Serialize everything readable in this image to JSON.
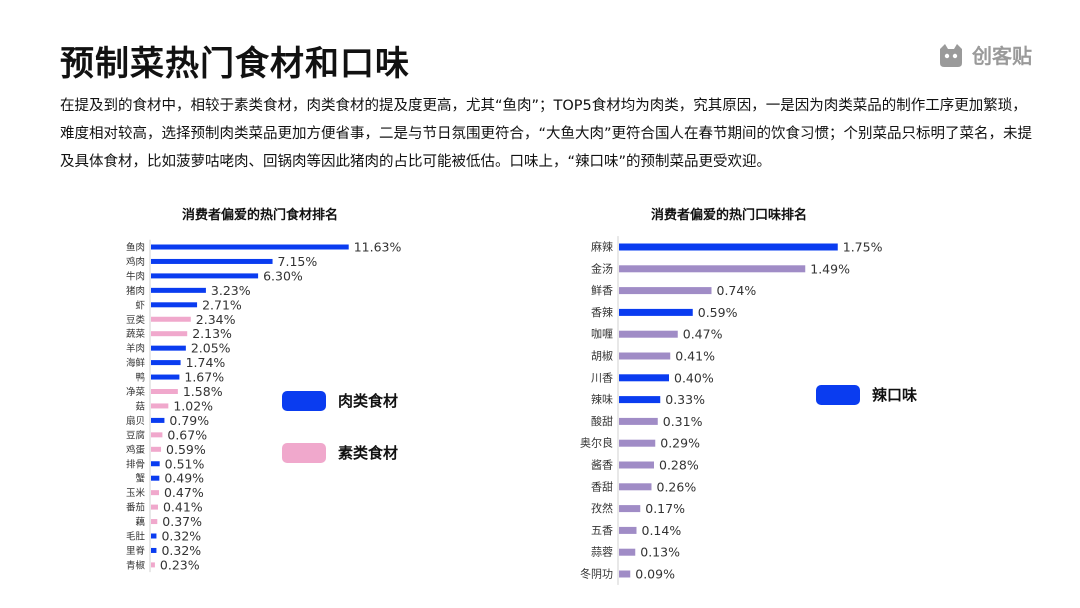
{
  "page": {
    "title": "预制菜热门食材和口味",
    "logo_text": "创客贴",
    "intro": "在提及到的食材中，相较于素类食材，肉类食材的提及度更高，尤其“鱼肉”；TOP5食材均为肉类，究其原因，一是因为肉类菜品的制作工序更加繁琐，难度相对较高，选择预制肉类菜品更加方便省事，二是与节日氛围更符合，“大鱼大肉”更符合国人在春节期间的饮食习惯；个别菜品只标明了菜名，未提及具体食材，比如菠萝咕咾肉、回锅肉等因此猪肉的占比可能被低估。口味上，“辣口味”的预制菜品更受欢迎。"
  },
  "colors": {
    "meat": "#0a3cf0",
    "veg": "#f0a8cc",
    "flavor_top": "#0a3cf0",
    "flavor": "#a08cc6"
  },
  "chart_data": [
    {
      "type": "bar",
      "orientation": "horizontal",
      "title": "消费者偏爱的热门食材排名",
      "legend": [
        "肉类食材",
        "素类食材"
      ],
      "legend_position": "right",
      "unit": "%",
      "items": [
        {
          "label": "鱼肉",
          "value": 11.63,
          "value_label": "11.63%",
          "group": "meat"
        },
        {
          "label": "鸡肉",
          "value": 7.15,
          "value_label": "7.15%",
          "group": "meat"
        },
        {
          "label": "牛肉",
          "value": 6.3,
          "value_label": "6.30%",
          "group": "meat"
        },
        {
          "label": "猪肉",
          "value": 3.23,
          "value_label": "3.23%",
          "group": "meat"
        },
        {
          "label": "虾",
          "value": 2.71,
          "value_label": "2.71%",
          "group": "meat"
        },
        {
          "label": "豆类",
          "value": 2.34,
          "value_label": "2.34%",
          "group": "veg"
        },
        {
          "label": "蔬菜",
          "value": 2.13,
          "value_label": "2.13%",
          "group": "veg"
        },
        {
          "label": "羊肉",
          "value": 2.05,
          "value_label": "2.05%",
          "group": "meat"
        },
        {
          "label": "海鲜",
          "value": 1.74,
          "value_label": "1.74%",
          "group": "meat"
        },
        {
          "label": "鸭",
          "value": 1.67,
          "value_label": "1.67%",
          "group": "meat"
        },
        {
          "label": "净菜",
          "value": 1.58,
          "value_label": "1.58%",
          "group": "veg"
        },
        {
          "label": "菇",
          "value": 1.02,
          "value_label": "1.02%",
          "group": "veg"
        },
        {
          "label": "扇贝",
          "value": 0.79,
          "value_label": "0.79%",
          "group": "meat"
        },
        {
          "label": "豆腐",
          "value": 0.67,
          "value_label": "0.67%",
          "group": "veg"
        },
        {
          "label": "鸡蛋",
          "value": 0.59,
          "value_label": "0.59%",
          "group": "veg"
        },
        {
          "label": "排骨",
          "value": 0.51,
          "value_label": "0.51%",
          "group": "meat"
        },
        {
          "label": "蟹",
          "value": 0.49,
          "value_label": "0.49%",
          "group": "meat"
        },
        {
          "label": "玉米",
          "value": 0.47,
          "value_label": "0.47%",
          "group": "veg"
        },
        {
          "label": "番茄",
          "value": 0.41,
          "value_label": "0.41%",
          "group": "veg"
        },
        {
          "label": "藕",
          "value": 0.37,
          "value_label": "0.37%",
          "group": "veg"
        },
        {
          "label": "毛肚",
          "value": 0.32,
          "value_label": "0.32%",
          "group": "meat"
        },
        {
          "label": "里脊",
          "value": 0.32,
          "value_label": "0.32%",
          "group": "meat"
        },
        {
          "label": "青椒",
          "value": 0.23,
          "value_label": "0.23%",
          "group": "veg"
        }
      ]
    },
    {
      "type": "bar",
      "orientation": "horizontal",
      "title": "消费者偏爱的热门口味排名",
      "legend": [
        "辣口味"
      ],
      "legend_position": "right",
      "unit": "%",
      "items": [
        {
          "label": "麻辣",
          "value": 1.75,
          "value_label": "1.75%",
          "group": "spicy"
        },
        {
          "label": "金汤",
          "value": 1.49,
          "value_label": "1.49%",
          "group": "other"
        },
        {
          "label": "鲜香",
          "value": 0.74,
          "value_label": "0.74%",
          "group": "other"
        },
        {
          "label": "香辣",
          "value": 0.59,
          "value_label": "0.59%",
          "group": "spicy"
        },
        {
          "label": "咖喱",
          "value": 0.47,
          "value_label": "0.47%",
          "group": "other"
        },
        {
          "label": "胡椒",
          "value": 0.41,
          "value_label": "0.41%",
          "group": "other"
        },
        {
          "label": "川香",
          "value": 0.4,
          "value_label": "0.40%",
          "group": "spicy"
        },
        {
          "label": "辣味",
          "value": 0.33,
          "value_label": "0.33%",
          "group": "spicy"
        },
        {
          "label": "酸甜",
          "value": 0.31,
          "value_label": "0.31%",
          "group": "other"
        },
        {
          "label": "奥尔良",
          "value": 0.29,
          "value_label": "0.29%",
          "group": "other"
        },
        {
          "label": "酱香",
          "value": 0.28,
          "value_label": "0.28%",
          "group": "other"
        },
        {
          "label": "香甜",
          "value": 0.26,
          "value_label": "0.26%",
          "group": "other"
        },
        {
          "label": "孜然",
          "value": 0.17,
          "value_label": "0.17%",
          "group": "other"
        },
        {
          "label": "五香",
          "value": 0.14,
          "value_label": "0.14%",
          "group": "other"
        },
        {
          "label": "蒜蓉",
          "value": 0.13,
          "value_label": "0.13%",
          "group": "other"
        },
        {
          "label": "冬阴功",
          "value": 0.09,
          "value_label": "0.09%",
          "group": "other"
        }
      ]
    }
  ]
}
